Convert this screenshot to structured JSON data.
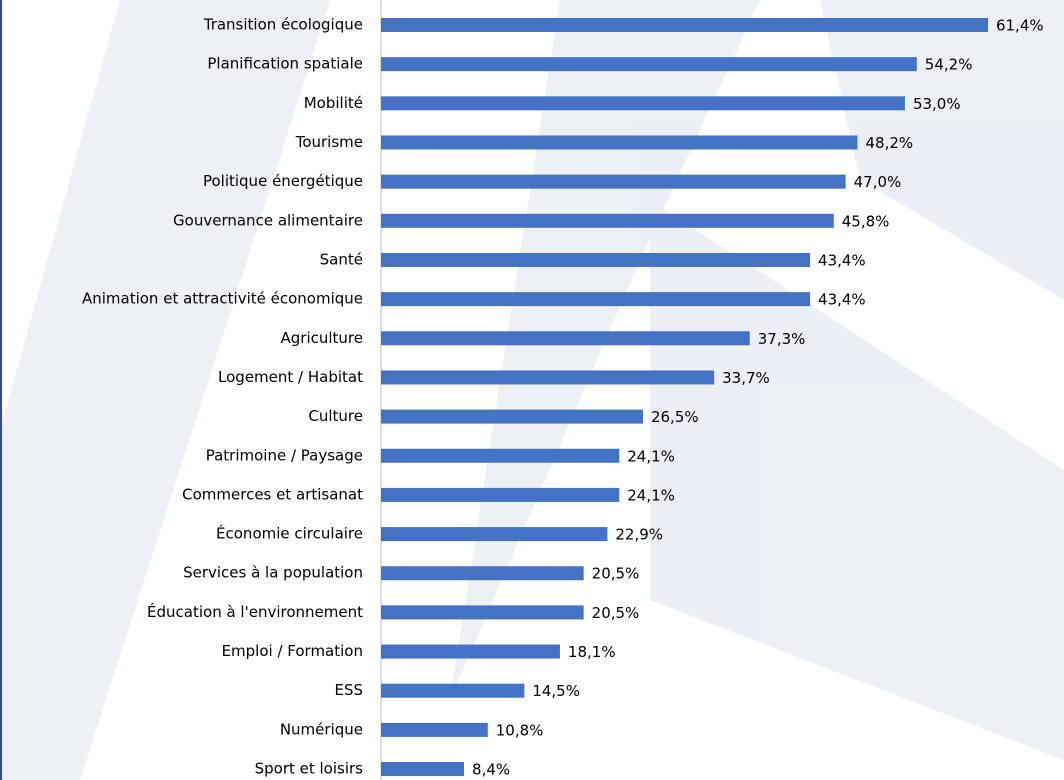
{
  "chart_data": {
    "type": "barh",
    "categories": [
      "Transition écologique",
      "Planification spatiale",
      "Mobilité",
      "Tourisme",
      "Politique énergétique",
      "Gouvernance alimentaire",
      "Santé",
      "Animation et attractivité économique",
      "Agriculture",
      "Logement / Habitat",
      "Culture",
      "Patrimoine / Paysage",
      "Commerces et artisanat",
      "Économie circulaire",
      "Services à la population",
      "Éducation à l'environnement",
      "Emploi / Formation",
      "ESS",
      "Numérique",
      "Sport et loisirs"
    ],
    "values": [
      61.4,
      54.2,
      53.0,
      48.2,
      47.0,
      45.8,
      43.4,
      43.4,
      37.3,
      33.7,
      26.5,
      24.1,
      24.1,
      22.9,
      20.5,
      20.5,
      18.1,
      14.5,
      10.8,
      8.4
    ],
    "value_labels": [
      "61,4%",
      "54,2%",
      "53,0%",
      "48,2%",
      "47,0%",
      "45,8%",
      "43,4%",
      "43,4%",
      "37,3%",
      "33,7%",
      "26,5%",
      "24,1%",
      "24,1%",
      "22,9%",
      "20,5%",
      "20,5%",
      "18,1%",
      "14,5%",
      "10,8%",
      "8,4%"
    ],
    "color": "#4472c4",
    "xlim": [
      0,
      70
    ]
  }
}
